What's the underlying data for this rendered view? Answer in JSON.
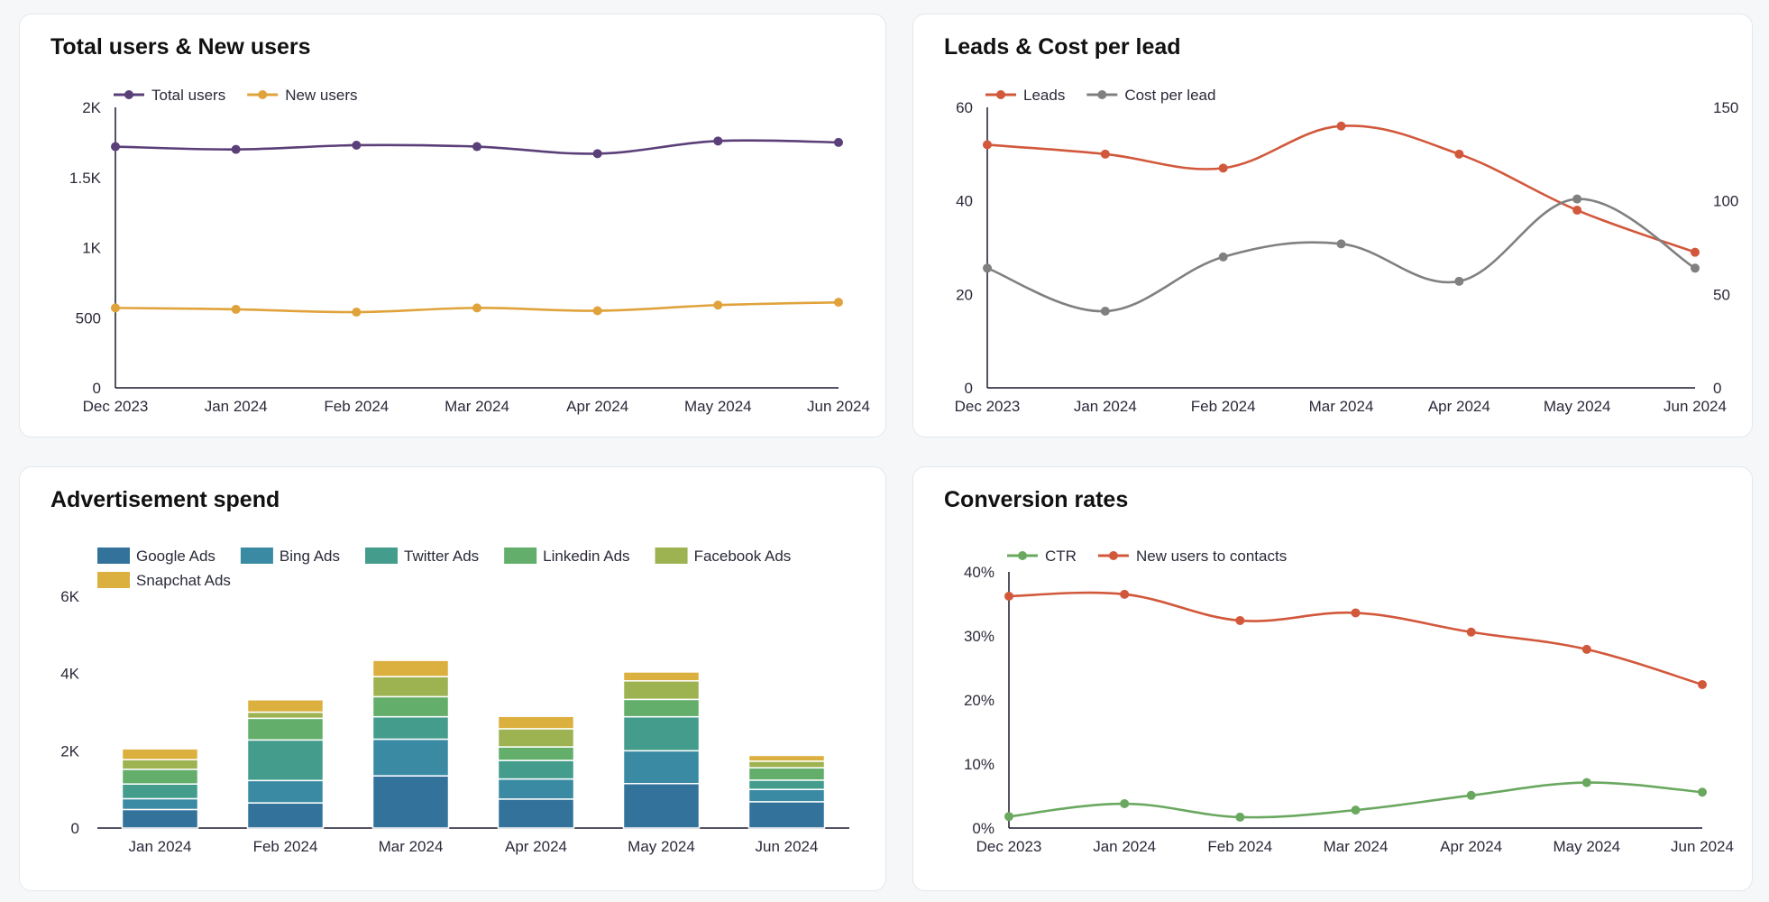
{
  "colors": {
    "total_users": "#5a3f78",
    "new_users": "#e0a33c",
    "leads": "#d2583c",
    "cost_per_lead": "#808080",
    "ctr": "#6aa860",
    "new_users_to_contacts": "#d2583c",
    "google_ads": "#32729b",
    "bing_ads": "#3a8aa3",
    "twitter_ads": "#449c8c",
    "linkedin_ads": "#62ae6a",
    "facebook_ads": "#9db250",
    "snapchat_ads": "#dcb03f"
  },
  "chart_data": [
    {
      "id": "c1",
      "type": "line",
      "title": "Total users & New users",
      "categories": [
        "Dec 2023",
        "Jan 2024",
        "Feb 2024",
        "Mar 2024",
        "Apr 2024",
        "May 2024",
        "Jun 2024"
      ],
      "series": [
        {
          "name": "Total users",
          "color_key": "total_users",
          "values": [
            1720,
            1700,
            1730,
            1720,
            1670,
            1760,
            1750
          ]
        },
        {
          "name": "New users",
          "color_key": "new_users",
          "values": [
            570,
            560,
            540,
            570,
            550,
            590,
            610
          ]
        }
      ],
      "y_ticks": [
        "0",
        "500",
        "1K",
        "1.5K",
        "2K"
      ],
      "ylim": [
        0,
        2000
      ],
      "legend": "top-left"
    },
    {
      "id": "c2",
      "type": "line",
      "title": "Leads & Cost per lead",
      "categories": [
        "Dec 2023",
        "Jan 2024",
        "Feb 2024",
        "Mar 2024",
        "Apr 2024",
        "May 2024",
        "Jun 2024"
      ],
      "series": [
        {
          "name": "Leads",
          "color_key": "leads",
          "axis": "left",
          "values": [
            52,
            50,
            47,
            56,
            50,
            38,
            29
          ]
        },
        {
          "name": "Cost per lead",
          "color_key": "cost_per_lead",
          "axis": "right",
          "values": [
            64,
            41,
            70,
            77,
            57,
            101,
            64
          ]
        }
      ],
      "y_ticks": [
        "0",
        "20",
        "40",
        "60"
      ],
      "ylim": [
        0,
        60
      ],
      "y2_ticks": [
        "0",
        "50",
        "100",
        "150"
      ],
      "y2lim": [
        0,
        150
      ],
      "legend": "top-left"
    },
    {
      "id": "c3",
      "type": "bar",
      "stacked": true,
      "title": "Advertisement spend",
      "categories": [
        "Jan 2024",
        "Feb 2024",
        "Mar 2024",
        "Apr 2024",
        "May 2024",
        "Jun 2024"
      ],
      "series": [
        {
          "name": "Google Ads",
          "color_key": "google_ads",
          "values": [
            480,
            650,
            1350,
            750,
            1150,
            680
          ]
        },
        {
          "name": "Bing Ads",
          "color_key": "bing_ads",
          "values": [
            280,
            580,
            950,
            520,
            850,
            320
          ]
        },
        {
          "name": "Twitter Ads",
          "color_key": "twitter_ads",
          "values": [
            380,
            1050,
            580,
            480,
            880,
            240
          ]
        },
        {
          "name": "Linkedin Ads",
          "color_key": "linkedin_ads",
          "values": [
            380,
            560,
            520,
            350,
            450,
            320
          ]
        },
        {
          "name": "Facebook Ads",
          "color_key": "facebook_ads",
          "values": [
            250,
            160,
            520,
            470,
            480,
            170
          ]
        },
        {
          "name": "Snapchat Ads",
          "color_key": "snapchat_ads",
          "values": [
            280,
            320,
            420,
            320,
            230,
            150
          ]
        }
      ],
      "y_ticks": [
        "0",
        "2K",
        "4K",
        "6K"
      ],
      "ylim": [
        0,
        6000
      ],
      "legend": "top"
    },
    {
      "id": "c4",
      "type": "line",
      "title": "Conversion rates",
      "categories": [
        "Dec 2023",
        "Jan 2024",
        "Feb 2024",
        "Mar 2024",
        "Apr 2024",
        "May 2024",
        "Jun 2024"
      ],
      "series": [
        {
          "name": "CTR",
          "color_key": "ctr",
          "values": [
            1.8,
            3.8,
            1.7,
            2.8,
            5.1,
            7.1,
            5.6
          ]
        },
        {
          "name": "New users to contacts",
          "color_key": "new_users_to_contacts",
          "values": [
            36.2,
            36.5,
            32.4,
            33.6,
            30.6,
            27.9,
            22.4
          ]
        }
      ],
      "y_ticks": [
        "0%",
        "10%",
        "20%",
        "30%",
        "40%"
      ],
      "ylim": [
        0,
        40
      ],
      "legend": "top-left"
    }
  ]
}
